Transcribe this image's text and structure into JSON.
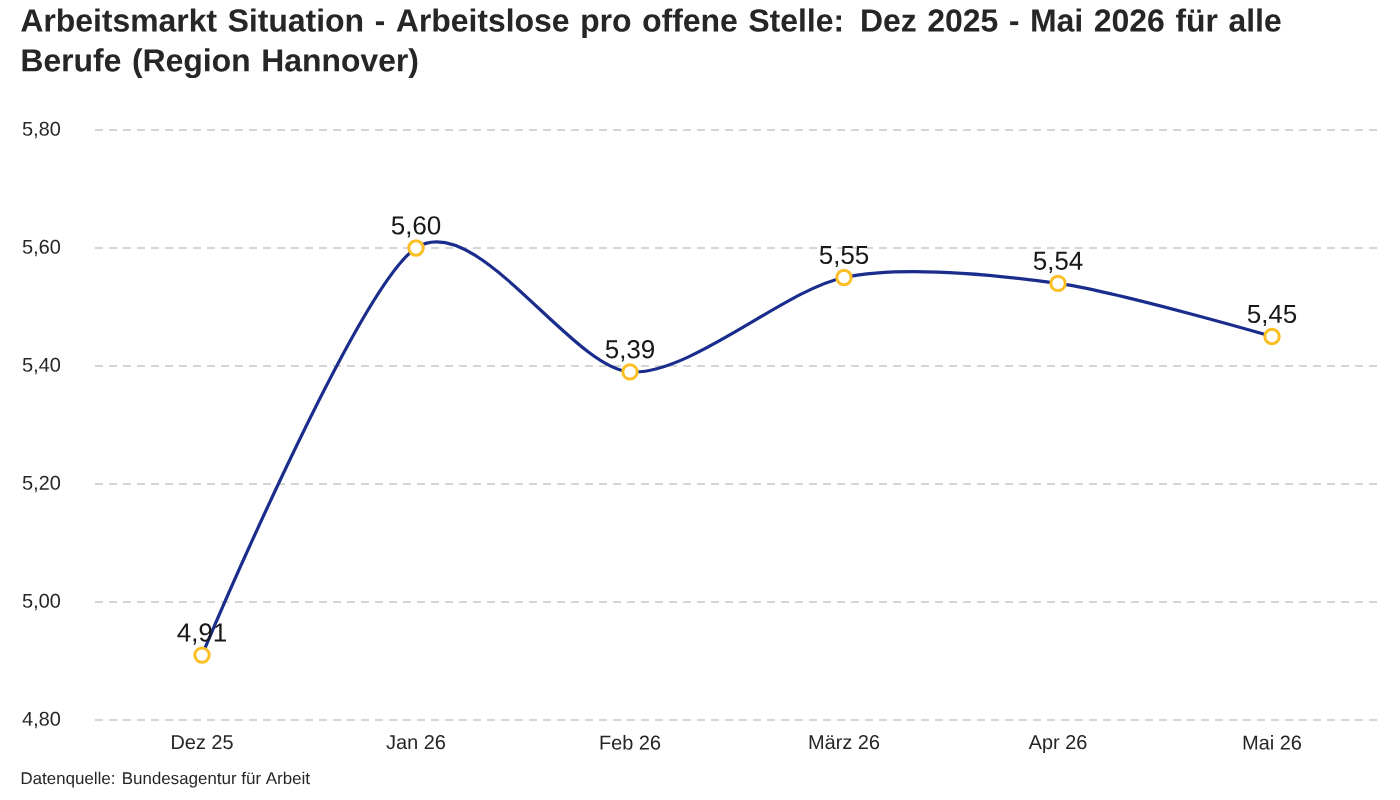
{
  "chart_data": {
    "type": "line",
    "title": "Arbeitsmarkt Situation - Arbeitslose pro offene Stelle: Dez 2025 - Mai 2026 für alle Berufe (Region Hannover)",
    "categories": [
      "Dez 25",
      "Jan 26",
      "Feb 26",
      "März 26",
      "Apr 26",
      "Mai 26"
    ],
    "series": [
      {
        "color": "#1a2d8c",
        "colors": [
          "#fbbf24",
          "#fbbf24",
          "#fbbf24",
          "#fbbf24",
          "#fbbf24",
          "#fbbf24"
        ],
        "values": [
          4.91,
          5.6,
          5.39,
          5.55,
          5.54,
          5.45
        ],
        "value_labels": [
          "4,91",
          "5,60",
          "5,39",
          "5,55",
          "5,54",
          "5,45"
        ]
      }
    ],
    "ylim": [
      4.8,
      5.8
    ],
    "yticks": [
      {
        "value": 4.8,
        "label": "4,80"
      },
      {
        "value": 5.0,
        "label": "5,00"
      },
      {
        "value": 5.2,
        "label": "5,20"
      },
      {
        "value": 5.4,
        "label": "5,40"
      },
      {
        "value": 5.6,
        "label": "5,60"
      },
      {
        "value": 5.8,
        "label": "5,80"
      }
    ],
    "grid": "y",
    "marker": "circle",
    "line_style": "solid",
    "annotations": [
      "Datenquelle: Bundesagentur für Arbeit"
    ]
  }
}
